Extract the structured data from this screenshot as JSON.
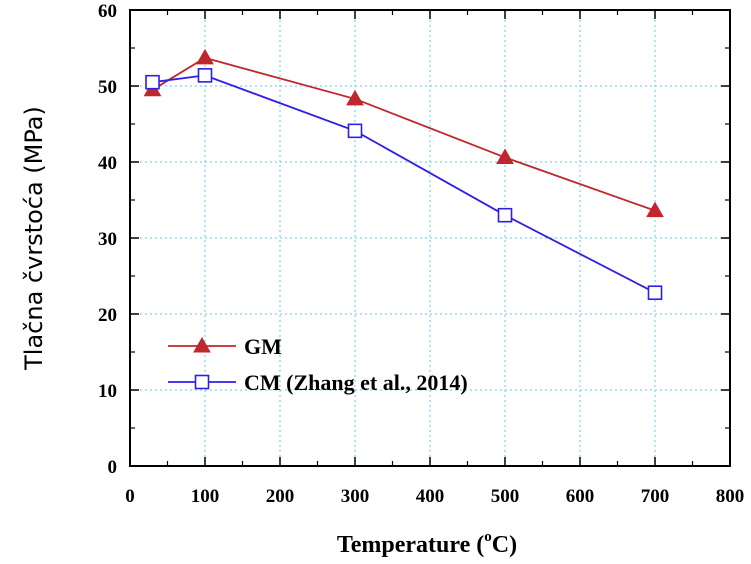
{
  "chart_data": {
    "type": "line",
    "xlabel": "Temperature (",
    "xlabel_unit": "C)",
    "xlabel_degree": "o",
    "ylabel": "Tlačna čvrstoća (MPa)",
    "xlim": [
      0,
      800
    ],
    "ylim": [
      0,
      60
    ],
    "xticks": [
      0,
      100,
      200,
      300,
      400,
      500,
      600,
      700,
      800
    ],
    "yticks": [
      0,
      10,
      20,
      30,
      40,
      50,
      60
    ],
    "grid": true,
    "legend_position": "bottom-left",
    "series": [
      {
        "name": "GM",
        "color": "#c0262d",
        "marker": "filled-triangle",
        "x": [
          30,
          100,
          300,
          500,
          700
        ],
        "y": [
          49.5,
          53.7,
          48.3,
          40.6,
          33.6
        ]
      },
      {
        "name": "CM (Zhang et al., 2014)",
        "color": "#2f1fe6",
        "marker": "open-square",
        "x": [
          30,
          100,
          300,
          500,
          700
        ],
        "y": [
          50.5,
          51.4,
          44.1,
          33.0,
          22.8
        ]
      }
    ]
  }
}
